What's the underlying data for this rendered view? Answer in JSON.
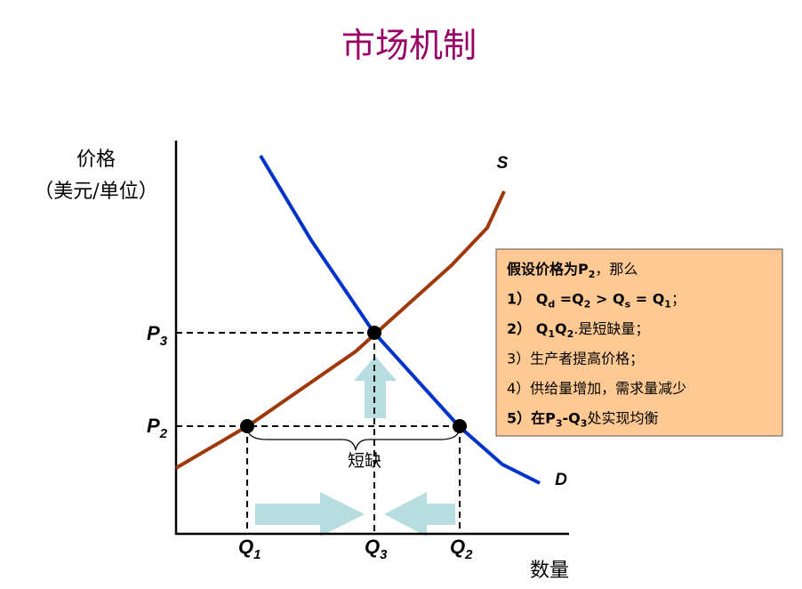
{
  "title": "市场机制",
  "y_axis_label": [
    "价格",
    "（美元/单位）"
  ],
  "x_axis_label": "数量",
  "curves": {
    "supply": "S",
    "demand": "D"
  },
  "price_labels": [
    {
      "main": "P",
      "sub": "3"
    },
    {
      "main": "P",
      "sub": "2"
    }
  ],
  "quantity_labels": [
    {
      "main": "Q",
      "sub": "1"
    },
    {
      "main": "Q",
      "sub": "3"
    },
    {
      "main": "Q",
      "sub": "2"
    }
  ],
  "shortage_label": "短缺",
  "note": {
    "lines": [
      [
        {
          "text": "假设价格为P"
        },
        {
          "sub": "2"
        },
        {
          "text": "，那么"
        }
      ],
      [
        {
          "text": "1）  Q"
        },
        {
          "sub": "d"
        },
        {
          "text": " =Q"
        },
        {
          "sub": "2"
        },
        {
          "text": " > Q"
        },
        {
          "sub": "s"
        },
        {
          "text": " = Q"
        },
        {
          "sub": "1"
        },
        {
          "text": "；"
        }
      ],
      [
        {
          "text": "2）  Q"
        },
        {
          "sub": "1"
        },
        {
          "text": "Q"
        },
        {
          "sub": "2"
        },
        {
          "text": ".是短缺量；"
        }
      ],
      [
        {
          "text": "3）生产者提高价格；"
        }
      ],
      [
        {
          "text": "4）供给量增加，需求量减少"
        }
      ],
      [
        {
          "text": "5）在P"
        },
        {
          "sub": "3"
        },
        {
          "text": "-Q"
        },
        {
          "sub": "3"
        },
        {
          "text": "处实现均衡"
        }
      ]
    ]
  }
}
